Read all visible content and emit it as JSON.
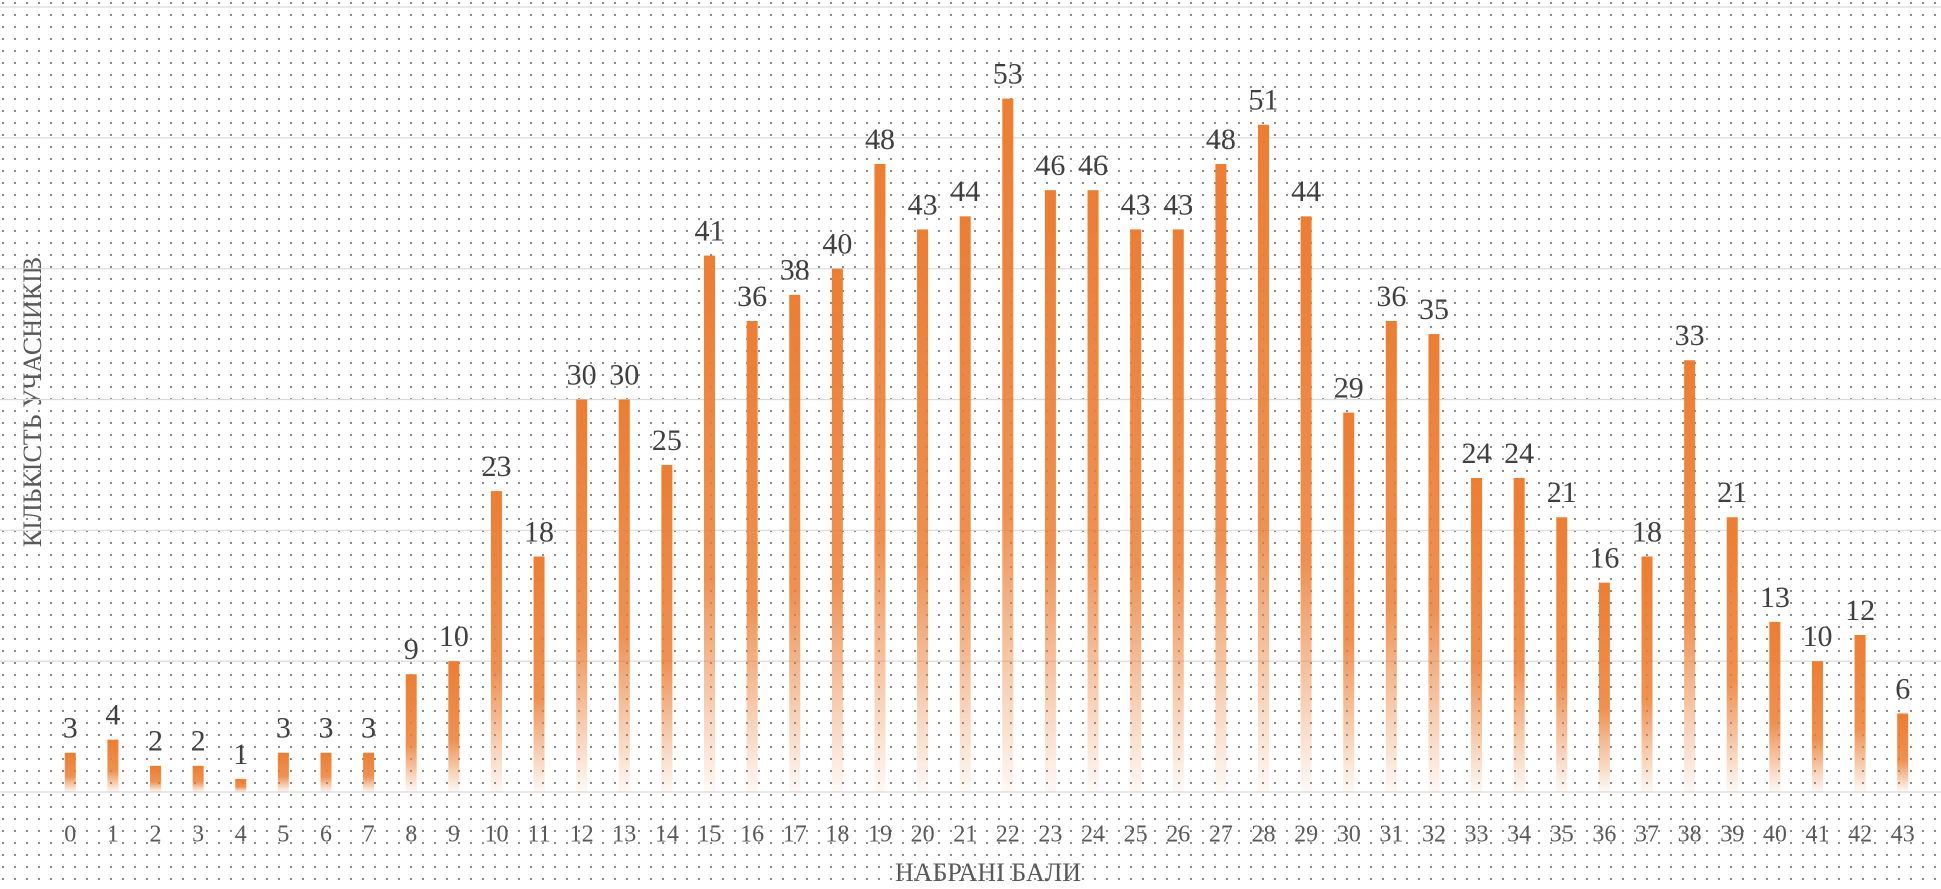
{
  "chart_data": {
    "type": "bar",
    "x_label": "НАБРАНІ БАЛИ",
    "y_label": "КІЛЬКІСТЬ УЧАСНИКІВ",
    "categories": [
      "0",
      "1",
      "2",
      "3",
      "4",
      "5",
      "6",
      "7",
      "8",
      "9",
      "10",
      "11",
      "12",
      "13",
      "14",
      "15",
      "16",
      "17",
      "18",
      "19",
      "20",
      "21",
      "22",
      "23",
      "24",
      "25",
      "26",
      "27",
      "28",
      "29",
      "30",
      "31",
      "32",
      "33",
      "34",
      "35",
      "36",
      "37",
      "38",
      "39",
      "40",
      "41",
      "42",
      "43"
    ],
    "values": [
      3,
      4,
      2,
      2,
      1,
      3,
      3,
      3,
      9,
      10,
      23,
      18,
      30,
      30,
      25,
      41,
      36,
      38,
      40,
      48,
      43,
      44,
      53,
      46,
      46,
      43,
      43,
      48,
      51,
      44,
      29,
      36,
      35,
      24,
      24,
      21,
      16,
      18,
      33,
      21,
      13,
      10,
      12,
      6
    ],
    "color": "#ed7d31",
    "ylim": [
      0,
      60
    ],
    "yticks": [
      0,
      10,
      20,
      30,
      40,
      50,
      60
    ],
    "grid": true
  }
}
